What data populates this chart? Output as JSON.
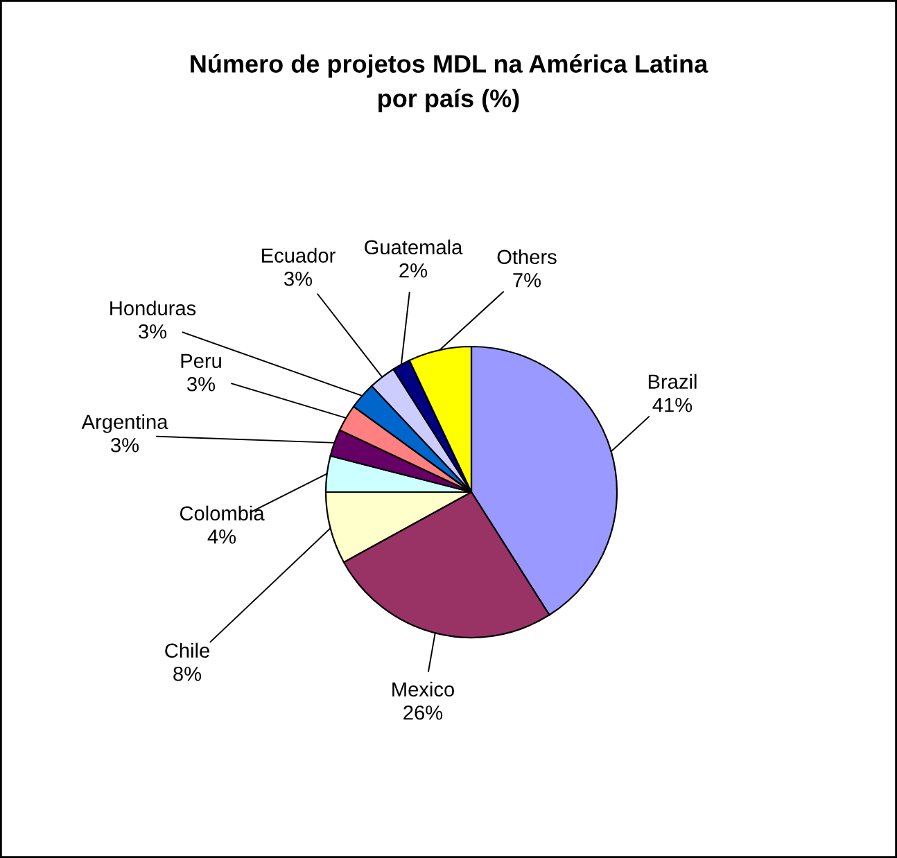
{
  "chart_data": {
    "type": "pie",
    "title": "Número de projetos MDL na América Latina\npor país (%)",
    "categories": [
      "Brazil",
      "Mexico",
      "Chile",
      "Colombia",
      "Argentina",
      "Peru",
      "Honduras",
      "Ecuador",
      "Guatemala",
      "Others"
    ],
    "values": [
      41,
      26,
      8,
      4,
      3,
      3,
      3,
      3,
      2,
      7
    ],
    "value_labels": [
      "41%",
      "26%",
      "8%",
      "4%",
      "3%",
      "3%",
      "3%",
      "3%",
      "2%",
      "7%"
    ],
    "colors": [
      "#9999ff",
      "#993366",
      "#ffffcc",
      "#ccffff",
      "#660066",
      "#ff8080",
      "#0066cc",
      "#ccccff",
      "#000080",
      "#ffff00"
    ],
    "legend": false
  }
}
